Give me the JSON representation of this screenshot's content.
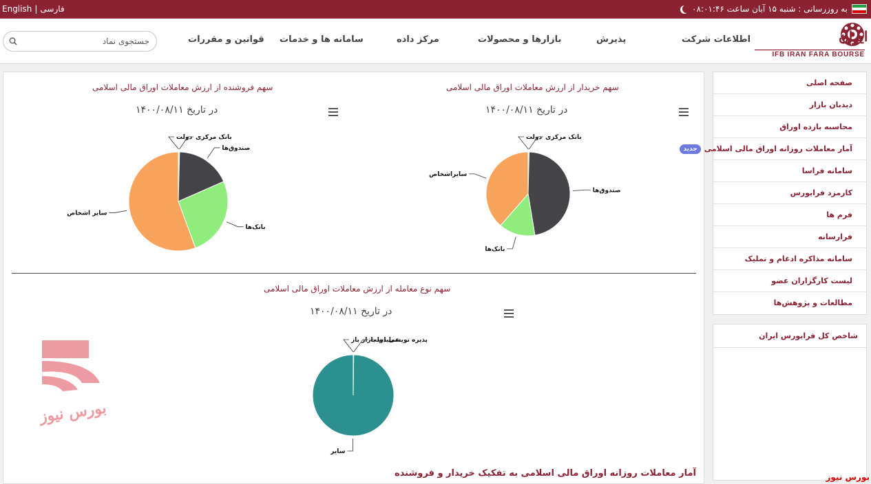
{
  "topbar": {
    "lang_en": "English",
    "lang_sep": "|",
    "lang_fa": "فارسی",
    "updated_label": "به روزرسانی : شنبه ۱۵ آبان ساعت ۰۸:۰۱:۴۶"
  },
  "logo": {
    "text_fa": "فرابورس ایران",
    "text_en": "IFB IRAN FARA BOURSE"
  },
  "nav": {
    "items": [
      "اطلاعات شرکت",
      "پذیرش",
      "بازارها و محصولات",
      "مرکز داده",
      "سامانه ها و خدمات",
      "قوانین و مقررات"
    ]
  },
  "search": {
    "placeholder": "جستجوی نماد"
  },
  "charts": {
    "buyer": {
      "title": "سهم خریدار از ارزش معاملات اوراق مالی اسلامی",
      "date": "در تاریخ ۱۴۰۰/۰۸/۱۱"
    },
    "seller": {
      "title": "سهم فروشنده از ارزش معاملات اوراق مالی اسلامی",
      "date": "در تاریخ ۱۴۰۰/۰۸/۱۱"
    },
    "trade_type": {
      "title": "سهم نوع معامله از ارزش معاملات اوراق مالی اسلامی",
      "date": "در تاریخ ۱۴۰۰/۰۸/۱۱"
    }
  },
  "chart_data": [
    {
      "type": "pie",
      "title": "سهم خریدار از ارزش معاملات اوراق مالی اسلامی",
      "categories": [
        "دولت",
        "بانک مرکزی",
        "صندوق‌ها",
        "بانک‌ها",
        "سایراشخاص"
      ],
      "values": [
        0.2,
        0.2,
        47,
        14,
        38.6
      ],
      "colors": [
        "#2f7ed8",
        "#8bbc21",
        "#434348",
        "#90ed7d",
        "#f7a35c"
      ]
    },
    {
      "type": "pie",
      "title": "سهم فروشنده از ارزش معاملات اوراق مالی اسلامی",
      "categories": [
        "دولت",
        "بانک مرکزی",
        "صندوق‌ها",
        "بانک‌ها",
        "سایر اشخاص"
      ],
      "values": [
        0.2,
        0.2,
        18,
        26,
        55.6
      ],
      "colors": [
        "#2f7ed8",
        "#8bbc21",
        "#434348",
        "#90ed7d",
        "#f7a35c"
      ]
    },
    {
      "type": "pie",
      "title": "سهم نوع معامله از ارزش معاملات اوراق مالی اسلامی",
      "categories": [
        "عملیات بازار باز",
        "پذیره نویسی دولت",
        "سایر"
      ],
      "values": [
        0.1,
        0.1,
        99.8
      ],
      "colors": [
        "#2b908f",
        "#2b908f",
        "#2b908f"
      ]
    }
  ],
  "sidebar": {
    "items": [
      {
        "label": "صفحه اصلی"
      },
      {
        "label": "دیدبان بازار"
      },
      {
        "label": "محاسبه بازده اوراق"
      },
      {
        "label": "آمار معاملات روزانه اوراق مالی اسلامی",
        "badge": "جدید"
      },
      {
        "label": "سامانه فراسا"
      },
      {
        "label": "کارمزد فرابورس"
      },
      {
        "label": "فرم ها"
      },
      {
        "label": "فرارسانه"
      },
      {
        "label": "سامانه مذاکره ادغام و تملیک"
      },
      {
        "label": "لیست کارگزاران عضو"
      },
      {
        "label": "مطالعات و پژوهش‌ها"
      }
    ],
    "index_title": "شاخص کل فرابورس ایران"
  },
  "section_title": "آمار معاملات روزانه اوراق مالی اسلامی به تفکیک خریدار و فروشنده",
  "watermark_text": "بورس نیوز",
  "footer_brand": "بورس نیوز"
}
